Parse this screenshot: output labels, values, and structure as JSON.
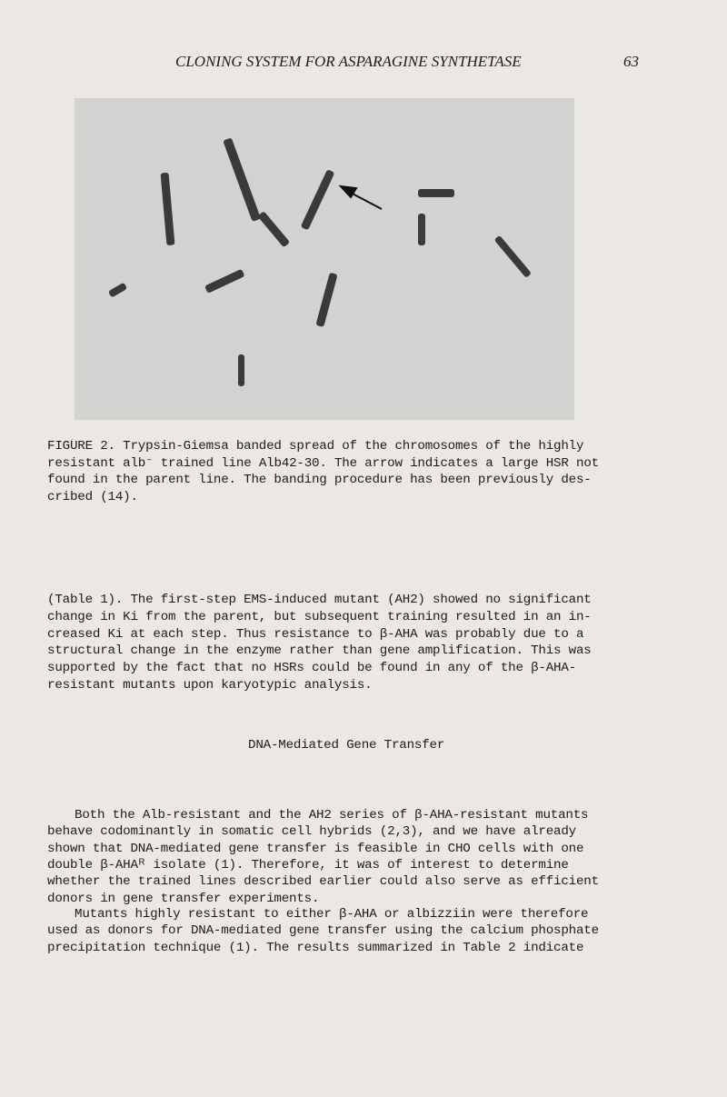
{
  "header": {
    "title": "CLONING SYSTEM FOR ASPARAGINE SYNTHETASE",
    "page_number": "63"
  },
  "figure": {
    "caption_lines": [
      "FIGURE 2. Trypsin-Giemsa banded spread of the chromosomes of the highly",
      "resistant alb⁻ trained line Alb42-30. The arrow indicates a large HSR not",
      "found in the parent line. The banding procedure has been previously des-",
      "cribed (14)."
    ]
  },
  "paragraphs": [
    {
      "lines": [
        "(Table 1). The first-step EMS-induced mutant (AH2) showed no significant",
        "change in Ki from the parent, but subsequent training resulted in an in-",
        "creased Ki at each step. Thus resistance to β-AHA was probably due to a",
        "structural change in the enzyme rather than gene amplification. This was",
        "supported by the fact that no HSRs could be found in any of the β-AHA-",
        "resistant mutants upon karyotypic analysis."
      ]
    }
  ],
  "section": {
    "heading": "DNA-Mediated Gene Transfer",
    "paragraphs": [
      {
        "lines": [
          "Both the Alb-resistant and the AH2 series of β-AHA-resistant mutants",
          "behave codominantly in somatic cell hybrids (2,3), and we have already",
          "shown that DNA-mediated gene transfer is feasible in CHO cells with one",
          "double β-AHAᴿ isolate (1). Therefore, it was of interest to determine",
          "whether the trained lines described earlier could also serve as efficient",
          "donors in gene transfer experiments."
        ]
      },
      {
        "lines": [
          "Mutants highly resistant to either β-AHA or albizziin were therefore",
          "used as donors for DNA-mediated gene transfer using the calcium phosphate",
          "precipitation technique (1). The results summarized in Table 2 indicate"
        ]
      }
    ]
  }
}
